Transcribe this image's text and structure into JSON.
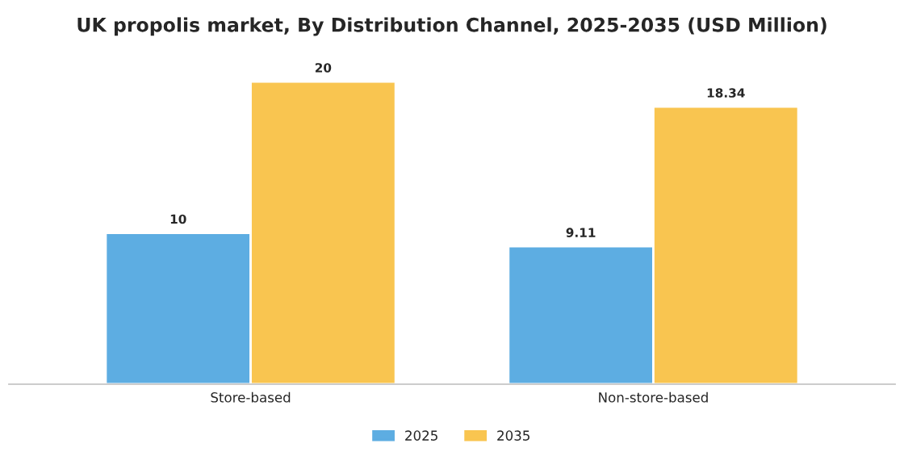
{
  "chart_data": {
    "type": "bar",
    "title": "UK propolis market, By Distribution Channel, 2025-2035 (USD Million)",
    "categories": [
      "Store-based",
      "Non-store-based"
    ],
    "series": [
      {
        "name": "2025",
        "color": "#5dade2",
        "values": [
          10,
          9.11
        ]
      },
      {
        "name": "2035",
        "color": "#f9c550",
        "values": [
          20,
          18.34
        ]
      }
    ],
    "data_labels": true,
    "legend": "bottom",
    "grid": false,
    "tick_labels": "x"
  }
}
